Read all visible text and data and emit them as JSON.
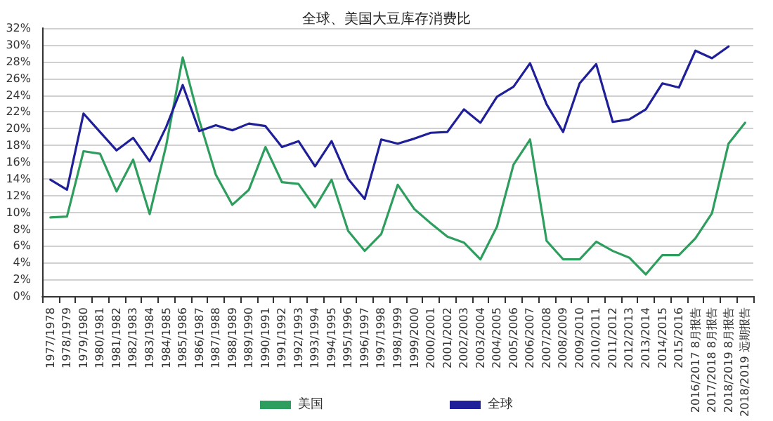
{
  "chart_data": {
    "type": "line",
    "title": "全球、美国大豆库存消费比",
    "categories": [
      "1977/1978",
      "1978/1979",
      "1979/1980",
      "1980/1981",
      "1981/1982",
      "1982/1983",
      "1983/1984",
      "1984/1985",
      "1985/1986",
      "1986/1987",
      "1987/1988",
      "1988/1989",
      "1989/1990",
      "1990/1991",
      "1991/1992",
      "1992/1993",
      "1993/1994",
      "1994/1995",
      "1995/1996",
      "1996/1997",
      "1997/1998",
      "1998/1999",
      "1999/2000",
      "2000/2001",
      "2001/2002",
      "2002/2003",
      "2003/2004",
      "2004/2005",
      "2005/2006",
      "2006/2007",
      "2007/2008",
      "2008/2009",
      "2009/2010",
      "2010/2011",
      "2011/2012",
      "2012/2013",
      "2013/2014",
      "2014/2015",
      "2015/2016",
      "2016/2017 8月报告",
      "2017/2018 8月报告",
      "2018/2019 8月报告",
      "2018/2019 远期报告"
    ],
    "series": [
      {
        "name": "美国",
        "color": "#2e9e5e",
        "values": [
          9.4,
          9.5,
          17.3,
          17.0,
          12.5,
          16.3,
          9.8,
          18.0,
          28.5,
          21.0,
          14.5,
          10.9,
          12.7,
          17.8,
          13.6,
          13.4,
          10.6,
          13.9,
          7.8,
          5.4,
          7.4,
          13.3,
          10.4,
          8.7,
          7.1,
          6.4,
          4.4,
          8.3,
          15.7,
          18.7,
          6.6,
          4.4,
          4.4,
          6.5,
          5.4,
          4.6,
          2.6,
          4.9,
          4.9,
          6.9,
          9.9,
          18.2,
          20.7
        ]
      },
      {
        "name": "全球",
        "color": "#1f1f99",
        "values": [
          13.9,
          12.7,
          21.8,
          19.6,
          17.4,
          18.9,
          16.1,
          20.2,
          25.2,
          19.7,
          20.4,
          19.8,
          20.6,
          20.3,
          17.8,
          18.5,
          15.5,
          18.5,
          14.0,
          11.6,
          18.7,
          18.2,
          18.8,
          19.5,
          19.6,
          22.3,
          20.7,
          23.8,
          25.0,
          27.8,
          22.9,
          19.6,
          25.4,
          27.7,
          20.8,
          21.1,
          22.3,
          25.4,
          24.9,
          29.3,
          28.4,
          29.8,
          null
        ]
      }
    ],
    "ylim": [
      0,
      32
    ],
    "yticks": [
      {
        "value": 0,
        "label": "0%"
      },
      {
        "value": 2,
        "label": "2%"
      },
      {
        "value": 4,
        "label": "4%"
      },
      {
        "value": 6,
        "label": "6%"
      },
      {
        "value": 8,
        "label": "8%"
      },
      {
        "value": 10,
        "label": "10%"
      },
      {
        "value": 12,
        "label": "12%"
      },
      {
        "value": 14,
        "label": "14%"
      },
      {
        "value": 16,
        "label": "16%"
      },
      {
        "value": 18,
        "label": "18%"
      },
      {
        "value": 20,
        "label": "20%"
      },
      {
        "value": 22,
        "label": "22%"
      },
      {
        "value": 24,
        "label": "24%"
      },
      {
        "value": 26,
        "label": "26%"
      },
      {
        "value": 28,
        "label": "28%"
      },
      {
        "value": 30,
        "label": "30%"
      },
      {
        "value": 32,
        "label": "32%"
      }
    ],
    "grid": "y",
    "legend": "bottom",
    "marker": "none",
    "line_style": "solid"
  }
}
